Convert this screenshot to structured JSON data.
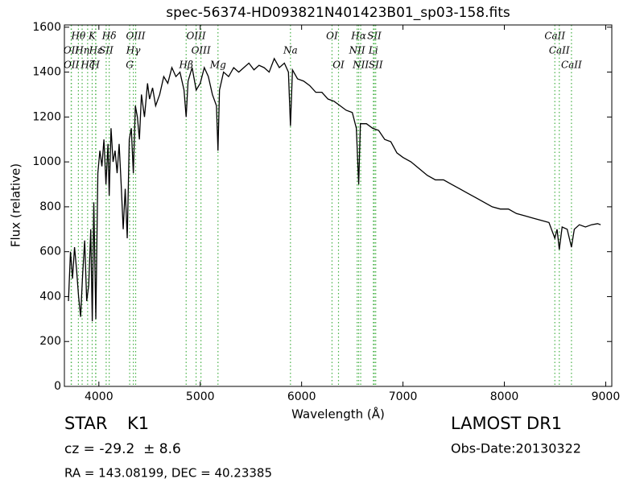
{
  "chart_data": {
    "type": "line",
    "title": "spec-56374-HD093821N401423B01_sp03-158.fits",
    "xlabel": "Wavelength (Å)",
    "ylabel": "Flux (relative)",
    "xlim": [
      3660,
      9060
    ],
    "ylim": [
      0,
      1610
    ],
    "xticks": [
      4000,
      5000,
      6000,
      7000,
      8000,
      9000
    ],
    "yticks": [
      0,
      200,
      400,
      600,
      800,
      1000,
      1200,
      1400,
      1600
    ],
    "color": "#000000",
    "line_color": "#44b044",
    "x": [
      3700,
      3720,
      3740,
      3760,
      3780,
      3800,
      3820,
      3840,
      3860,
      3880,
      3900,
      3920,
      3935,
      3950,
      3970,
      3990,
      4010,
      4030,
      4050,
      4070,
      4090,
      4102,
      4120,
      4140,
      4160,
      4180,
      4200,
      4220,
      4240,
      4260,
      4280,
      4300,
      4320,
      4340,
      4360,
      4380,
      4400,
      4420,
      4450,
      4480,
      4500,
      4530,
      4560,
      4600,
      4640,
      4680,
      4720,
      4760,
      4800,
      4840,
      4861,
      4880,
      4920,
      4960,
      5000,
      5040,
      5080,
      5120,
      5160,
      5175,
      5190,
      5230,
      5280,
      5330,
      5380,
      5430,
      5480,
      5530,
      5580,
      5630,
      5680,
      5730,
      5780,
      5830,
      5870,
      5890,
      5910,
      5960,
      6020,
      6080,
      6140,
      6200,
      6260,
      6320,
      6380,
      6440,
      6500,
      6540,
      6563,
      6580,
      6640,
      6700,
      6760,
      6820,
      6880,
      6940,
      7000,
      7080,
      7160,
      7240,
      7320,
      7400,
      7480,
      7560,
      7640,
      7720,
      7800,
      7880,
      7960,
      8040,
      8120,
      8200,
      8280,
      8360,
      8440,
      8498,
      8520,
      8542,
      8570,
      8620,
      8662,
      8690,
      8740,
      8800,
      8860,
      8920,
      8950
    ],
    "values": [
      380,
      600,
      480,
      620,
      520,
      400,
      310,
      500,
      650,
      380,
      450,
      700,
      290,
      820,
      300,
      950,
      1050,
      980,
      1100,
      900,
      1080,
      850,
      1150,
      1000,
      1050,
      950,
      1080,
      900,
      700,
      880,
      660,
      1100,
      1150,
      950,
      1250,
      1200,
      1100,
      1300,
      1200,
      1350,
      1280,
      1330,
      1250,
      1300,
      1380,
      1350,
      1420,
      1380,
      1400,
      1320,
      1200,
      1360,
      1420,
      1320,
      1350,
      1420,
      1380,
      1300,
      1250,
      1050,
      1320,
      1400,
      1380,
      1420,
      1400,
      1420,
      1440,
      1410,
      1430,
      1420,
      1400,
      1460,
      1420,
      1440,
      1400,
      1160,
      1410,
      1370,
      1360,
      1340,
      1310,
      1310,
      1280,
      1270,
      1250,
      1230,
      1220,
      1150,
      900,
      1170,
      1170,
      1150,
      1140,
      1100,
      1090,
      1040,
      1020,
      1000,
      970,
      940,
      920,
      920,
      900,
      880,
      860,
      840,
      820,
      800,
      790,
      790,
      770,
      760,
      750,
      740,
      730,
      660,
      700,
      610,
      710,
      700,
      620,
      700,
      720,
      710,
      720,
      725,
      720
    ],
    "spectral_lines": [
      [
        {
          "label": "Hθ",
          "wavelength": 3798
        },
        {
          "label": "K",
          "wavelength": 3934
        },
        {
          "label": "Hδ",
          "wavelength": 4102
        },
        {
          "label": "OIII",
          "wavelength": 4363
        },
        {
          "label": "OIII",
          "wavelength": 4959
        },
        {
          "label": "OI",
          "wavelength": 6300
        },
        {
          "label": "Hα",
          "wavelength": 6563
        },
        {
          "label": "SII",
          "wavelength": 6717
        },
        {
          "label": "CaII",
          "wavelength": 8498
        }
      ],
      [
        {
          "label": "OII",
          "wavelength": 3727
        },
        {
          "label": "Hη",
          "wavelength": 3835
        },
        {
          "label": "Hε",
          "wavelength": 3970
        },
        {
          "label": "SII",
          "wavelength": 4072
        },
        {
          "label": "Hγ",
          "wavelength": 4340
        },
        {
          "label": "OIII",
          "wavelength": 5007
        },
        {
          "label": "Na",
          "wavelength": 5890
        },
        {
          "label": "NII",
          "wavelength": 6548
        },
        {
          "label": "Li",
          "wavelength": 6708
        },
        {
          "label": "CaII",
          "wavelength": 8542
        }
      ],
      [
        {
          "label": "OII",
          "wavelength": 3729
        },
        {
          "label": "Hζ",
          "wavelength": 3889
        },
        {
          "label": "H",
          "wavelength": 3968
        },
        {
          "label": "G",
          "wavelength": 4304
        },
        {
          "label": "Hβ",
          "wavelength": 4861
        },
        {
          "label": "Mg",
          "wavelength": 5175
        },
        {
          "label": "OI",
          "wavelength": 6364
        },
        {
          "label": "NII",
          "wavelength": 6583
        },
        {
          "label": "SII",
          "wavelength": 6731
        },
        {
          "label": "CaII",
          "wavelength": 8662
        }
      ]
    ]
  },
  "footer": {
    "class": "STAR",
    "subclass": "K1",
    "cz": "cz = -29.2  ± 8.6",
    "coords": "RA = 143.08199, DEC = 40.23385",
    "survey": "LAMOST DR1",
    "obs_date": "Obs-Date:20130322"
  }
}
